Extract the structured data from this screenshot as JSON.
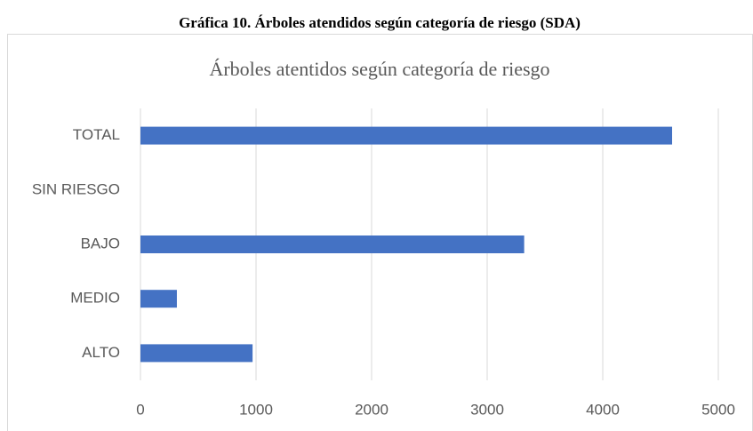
{
  "chart_data": {
    "type": "barh",
    "caption": "Gráfica 10. Árboles atendidos según categoría de riesgo (SDA)",
    "title": "Árboles atentidos según categoría de riesgo",
    "categories": [
      "TOTAL",
      "SIN RIESGO",
      "BAJO",
      "MEDIO",
      "ALTO"
    ],
    "values": [
      4600,
      0,
      3320,
      315,
      970
    ],
    "color": "#4472c4",
    "xlim": [
      0,
      5000
    ],
    "xticks": [
      0,
      1000,
      2000,
      3000,
      4000,
      5000
    ],
    "grid": true
  }
}
